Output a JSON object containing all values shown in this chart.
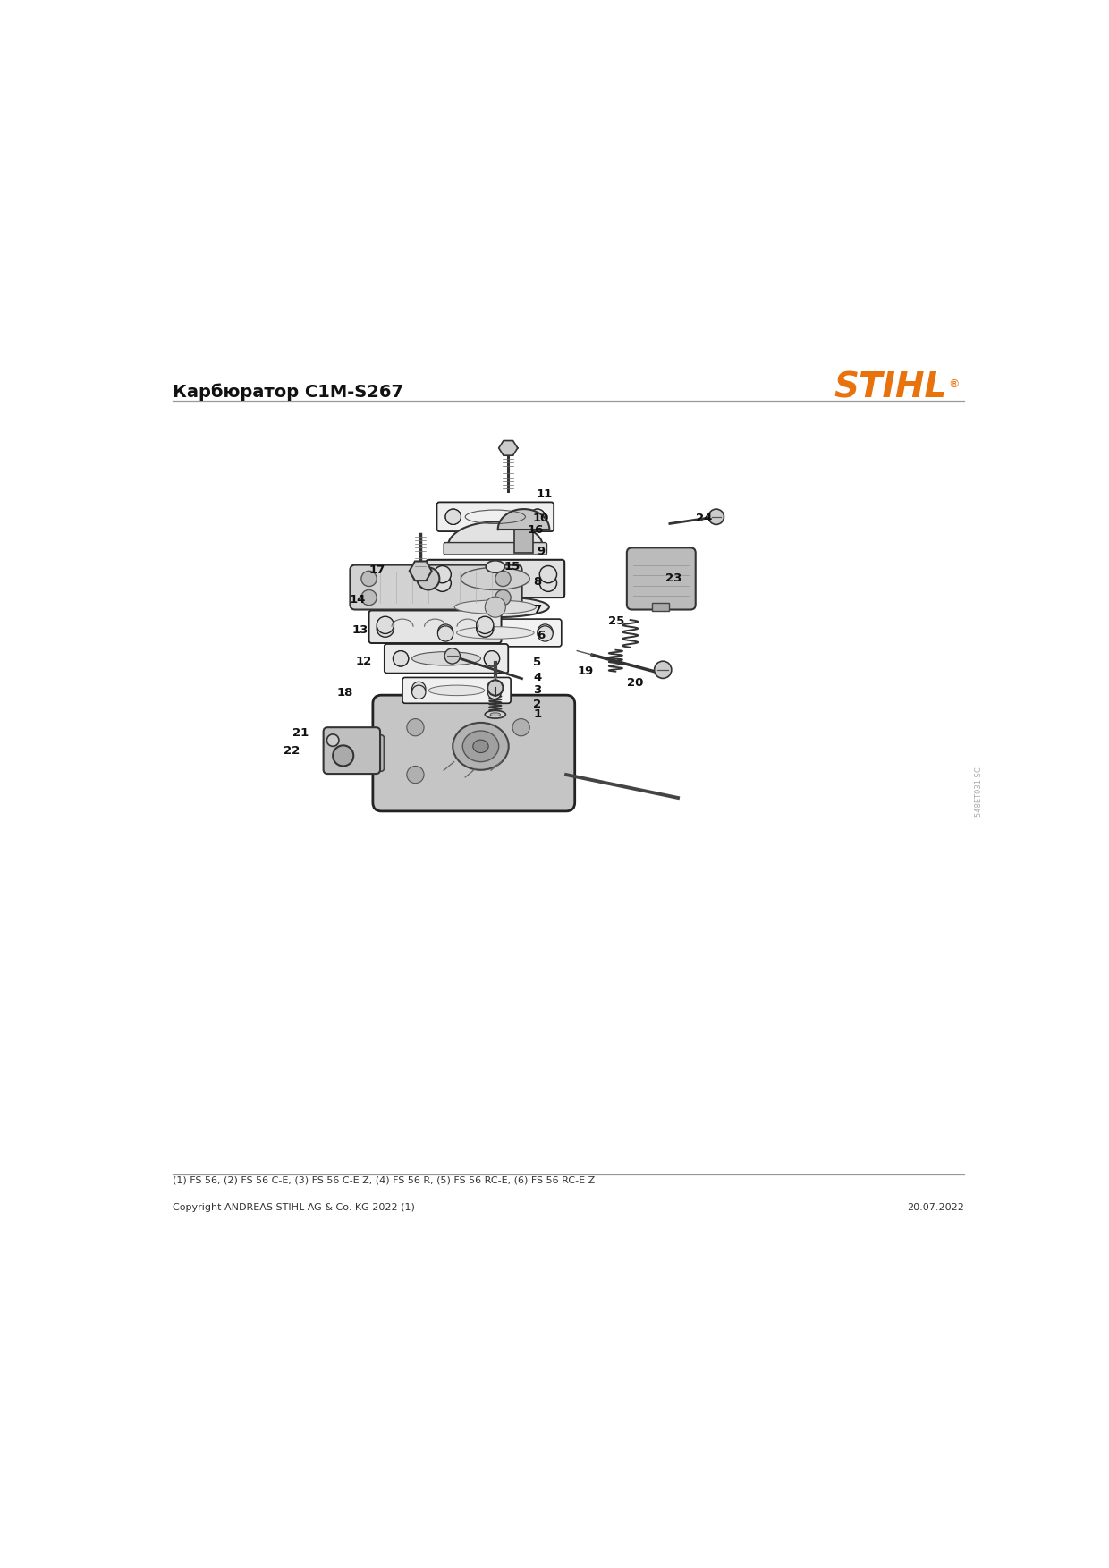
{
  "title": "Карбюратор C1M-S267",
  "stihl_color": "#E8720C",
  "copyright": "Copyright ANDREAS STIHL AG & Co. KG 2022 (1)",
  "date": "20.07.2022",
  "footnote": "(1) FS 56, (2) FS 56 C-E, (3) FS 56 C-E Z, (4) FS 56 R, (5) FS 56 RC-E, (6) FS 56 RC-E Z",
  "watermark": "548ET031 SC",
  "bg_color": "#ffffff"
}
